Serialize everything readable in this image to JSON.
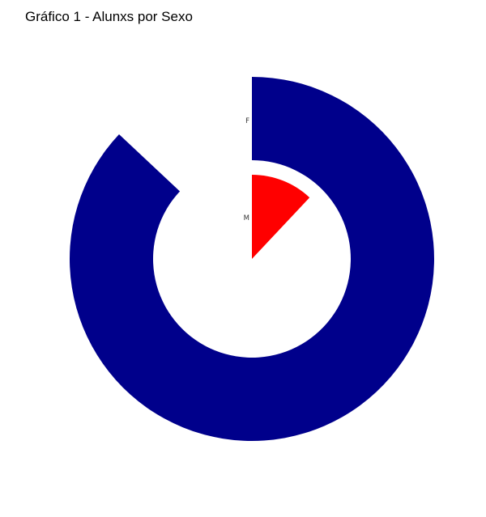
{
  "chart_data": {
    "type": "pie",
    "variant": "radial-bar",
    "title": "Gráfico 1 - Alunxs por Sexo",
    "categories": [
      "F",
      "M"
    ],
    "values": [
      87,
      12
    ],
    "max": 100,
    "colors": {
      "F": "#00008B",
      "M": "#FF0000"
    },
    "grid": false,
    "legend": "none"
  }
}
